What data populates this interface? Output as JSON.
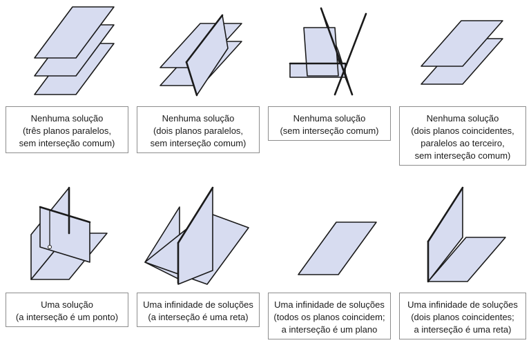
{
  "cases": [
    {
      "lines": [
        "Nenhuma solução",
        "(três planos paralelos,",
        "sem interseção comum)"
      ]
    },
    {
      "lines": [
        "Nenhuma solução",
        "(dois planos paralelos,",
        "sem interseção comum)"
      ]
    },
    {
      "lines": [
        "Nenhuma solução",
        "(sem interseção comum)"
      ]
    },
    {
      "lines": [
        "Nenhuma solução",
        "(dois planos coincidentes,",
        "paralelos ao terceiro,",
        "sem interseção comum)"
      ]
    },
    {
      "lines": [
        "Uma solução",
        "(a interseção é um ponto)"
      ]
    },
    {
      "lines": [
        "Uma infinidade de soluções",
        "(a interseção é uma reta)"
      ]
    },
    {
      "lines": [
        "Uma infinidade de soluções",
        "(todos os planos coincidem;",
        "a interseção é um plano"
      ]
    },
    {
      "lines": [
        "Uma infinidade de soluções",
        "(dois planos coincidentes;",
        "a interseção é uma reta)"
      ]
    }
  ],
  "colors": {
    "plane_fill": "#d7dcf0",
    "stroke": "#1a1a1a",
    "box_border": "#8c8c8c"
  }
}
